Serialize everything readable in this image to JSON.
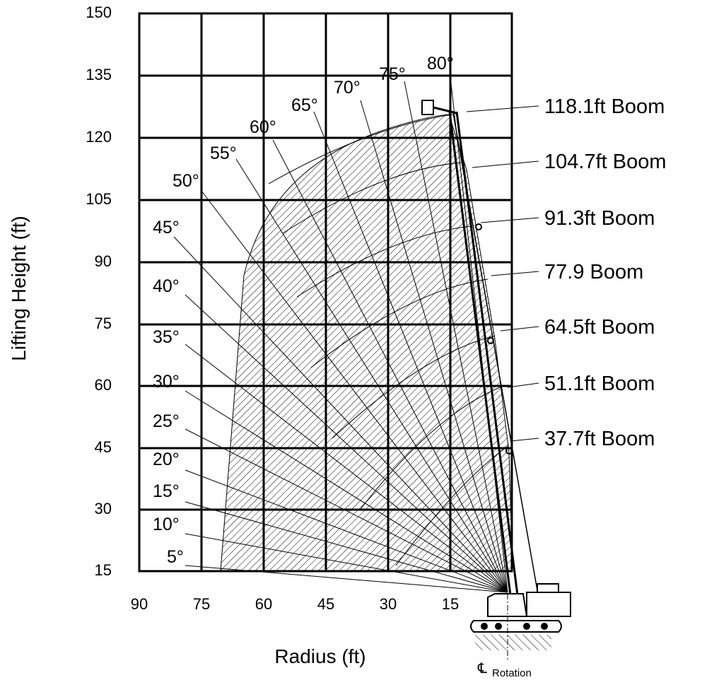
{
  "diagram": {
    "type": "crane-working-range-chart",
    "y_axis": {
      "label": "Lifting Height (ft)",
      "ticks": [
        "150",
        "135",
        "120",
        "105",
        "90",
        "75",
        "60",
        "45",
        "30",
        "15"
      ]
    },
    "x_axis": {
      "label": "Radius (ft)",
      "ticks": [
        "90",
        "75",
        "60",
        "45",
        "30",
        "15"
      ]
    },
    "angles": [
      "80°",
      "75°",
      "70°",
      "65°",
      "60°",
      "55°",
      "50°",
      "45°",
      "40°",
      "35°",
      "30°",
      "25°",
      "20°",
      "15°",
      "10°",
      "5°"
    ],
    "booms": [
      "118.1ft Boom",
      "104.7ft Boom",
      "91.3ft Boom",
      "77.9 Boom",
      "64.5ft Boom",
      "51.1ft Boom",
      "37.7ft Boom"
    ],
    "rotation_label_symbol": "℄",
    "rotation_label": "Rotation"
  }
}
